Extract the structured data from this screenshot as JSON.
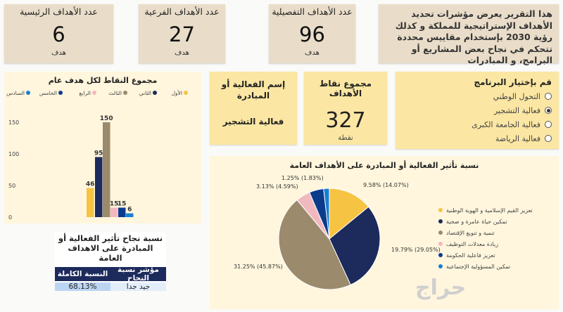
{
  "kpis": [
    {
      "title": "عدد الأهداف التفصيلية",
      "value": "96",
      "unit": "هدف"
    },
    {
      "title": "عدد الأهداف الفرعية",
      "value": "27",
      "unit": "هدف"
    },
    {
      "title": "عدد الأهداف الرئيسية",
      "value": "6",
      "unit": "هدف"
    }
  ],
  "intro": {
    "text": "هذا التقرير يعرض مؤشرات تحديد الأهداف الإستراتيجية للمملكة و كذلك رؤية 2030 بإستخدام مقاييس محددة تتحكم في نجاح بعض المشاريع أو البرامج، و المبادرات"
  },
  "program": {
    "title": "قم بإختيار البرنامج",
    "options": [
      "التحول الوطني",
      "فعالية التشجير",
      "فعالية الجامعة الكبرى",
      "فعالية الرياضة"
    ],
    "selected": 1
  },
  "points_card": {
    "title": "مجموع نقاط الأهداف",
    "value": "327",
    "unit": "نقطة"
  },
  "initiative_card": {
    "title": "إسم الفعالية أو المبادرة",
    "value": "فعالية التشجير"
  },
  "success_table": {
    "title_line1": "نسبة نجاح تأثير الفعالية أو",
    "title_line2": "المبادرة على الاهداف العامة",
    "header_rate": "النسبة الكاملة",
    "header_indicator": "مؤشر نسبة النجاح",
    "rate": "68.13%",
    "indicator": "جيد جدا"
  },
  "watermark": "حراج",
  "colors": {
    "gold": "#f6c343",
    "navy": "#1c2a5c",
    "taupe": "#9b8a6b",
    "pink": "#f2b8c0",
    "blue": "#0b3c8c",
    "lightblue": "#1a7fd1"
  },
  "chart_data": [
    {
      "type": "bar",
      "title": "مجموع النقاط لكل هدف عام",
      "legend": [
        "الأول",
        "الثاني",
        "الثالث",
        "الرابع",
        "الخامس",
        "السادس"
      ],
      "series": [
        {
          "name": "الأول",
          "value": 46,
          "color": "#f6c343"
        },
        {
          "name": "الثاني",
          "value": 95,
          "color": "#1c2a5c"
        },
        {
          "name": "الثالث",
          "value": 150,
          "color": "#9b8a6b"
        },
        {
          "name": "الرابع",
          "value": 15,
          "color": "#f2b8c0"
        },
        {
          "name": "الخامس",
          "value": 15,
          "color": "#0b3c8c"
        },
        {
          "name": "السادس",
          "value": 6,
          "color": "#1a7fd1"
        }
      ],
      "yticks": [
        "150",
        "100",
        "50",
        "0"
      ],
      "ylim": [
        0,
        160
      ]
    },
    {
      "type": "pie",
      "title": "نسبة تأثير الفعالية أو المبادرة على الأهداف العامة",
      "slices": [
        {
          "name": "تعزيز القيم الإسلامية و الهوية الوطنية",
          "value": 14.07,
          "label": "9.58% (14.07%)",
          "color": "#f6c343"
        },
        {
          "name": "تمكين حياة عامرة و صحية",
          "value": 29.05,
          "label": "19.79% (29.05%)",
          "color": "#1c2a5c"
        },
        {
          "name": "تنمية و تنويع الإقتصاد",
          "value": 45.87,
          "label": "31.25% (45.87%)",
          "color": "#9b8a6b"
        },
        {
          "name": "زيادة معدلات التوظيف",
          "value": 4.59,
          "label": "3.13% (4.59%)",
          "color": "#f2b8c0"
        },
        {
          "name": "تعزيز فاعلية الحكومة",
          "value": 4.59,
          "label": "",
          "color": "#0b3c8c"
        },
        {
          "name": "تمكين المسؤولية الإجتماعية",
          "value": 1.83,
          "label": "1.25% (1.83%)",
          "color": "#1a7fd1"
        }
      ]
    }
  ]
}
